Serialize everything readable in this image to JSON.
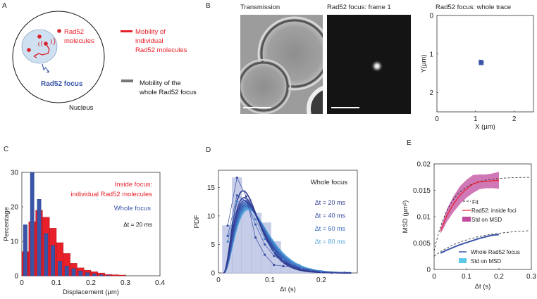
{
  "panels": {
    "A": {
      "letter": "A",
      "molecules_label_1": "Rad52",
      "molecules_label_2": "molecules",
      "focus_label": "Rad52 focus",
      "nucleus_label": "Nucleus",
      "legend": [
        {
          "lines": [
            "Mobility of",
            "individual",
            "Rad52 molecules"
          ],
          "color": "#e8202a"
        },
        {
          "lines": [
            "Mobility of the",
            "whole Rad52 focus"
          ],
          "color": "#777777"
        }
      ]
    },
    "B": {
      "letter": "B",
      "image1_title": "Transmission",
      "image2_title": "Rad52 focus: frame 1",
      "trace_title": "Rad52 focus: whole trace"
    },
    "C": {
      "letter": "C"
    },
    "D": {
      "letter": "D"
    },
    "E": {
      "letter": "E"
    }
  },
  "colors": {
    "red": "#e8202a",
    "blue": "#3a55a8",
    "pink": "#c04a9e",
    "lightblue": "#5ac8e8"
  },
  "chart_data": [
    {
      "id": "B-trace",
      "type": "scatter",
      "title": "Rad52 focus: whole trace",
      "xlabel": "X (µm)",
      "ylabel": "Y(µm)",
      "xlim": [
        0,
        2.5
      ],
      "ylim": [
        0,
        2.5
      ],
      "y_reversed": true,
      "xticks": [
        "0",
        "1",
        "2"
      ],
      "yticks": [
        "0",
        "1",
        "2"
      ],
      "cluster_center": [
        1.15,
        1.22
      ],
      "cluster_spread": 0.07
    },
    {
      "id": "C-hist",
      "type": "bar",
      "xlabel": "Displacement (µm)",
      "ylabel": "Percentage",
      "xlim": [
        0,
        0.4
      ],
      "ylim": [
        0,
        30
      ],
      "xticks": [
        "0",
        "0.1",
        "0.2",
        "0.3",
        "0.4"
      ],
      "yticks": [
        "0",
        "10",
        "20",
        "30"
      ],
      "bin_width": 0.02,
      "series": [
        {
          "name": "Inside focus: individual Rad52 molecules",
          "legend_lines": [
            "Inside focus:",
            "individual Rad52 molecules"
          ],
          "color": "#e8202a",
          "values": [
            7,
            15.7,
            19,
            17,
            13.8,
            9.6,
            6.5,
            3.6,
            2.3,
            1.6,
            1.2,
            0.8,
            0.4,
            0.3,
            0.2
          ]
        },
        {
          "name": "Whole focus",
          "color": "#3a55a8",
          "values": [
            14.8,
            30,
            22.2,
            12.3,
            8.8,
            4.2,
            2.8,
            2.1,
            1.4,
            0.9,
            0.6,
            0.3,
            0.1
          ]
        }
      ],
      "annotation": "Δt = 20 ms"
    },
    {
      "id": "D-pdf",
      "type": "line",
      "title": "Whole focus",
      "xlabel": "Δt (s)",
      "ylabel": "PDF",
      "xlim": [
        0,
        0.27
      ],
      "ylim": [
        0,
        18
      ],
      "xticks": [
        "0",
        "0.1",
        "0.2"
      ],
      "yticks": [
        "0",
        "5",
        "10",
        "15"
      ],
      "histogram": {
        "bin_edges": [
          0.008,
          0.027,
          0.045,
          0.064,
          0.083,
          0.102,
          0.121,
          0.14,
          0.159,
          0.178,
          0.197,
          0.216,
          0.235,
          0.254
        ],
        "values": [
          8.3,
          16.7,
          13,
          10.5,
          8.8,
          5.5,
          2.5,
          1.6,
          0.8,
          0.4,
          0.2,
          0.1,
          0.05
        ]
      },
      "legend": [
        {
          "label": "Δt = 20 ms",
          "color": "#2e3a8c"
        },
        {
          "label": "Δt = 40 ms",
          "color": "#3548a0"
        },
        {
          "label": "Δt = 60 ms",
          "color": "#3c6cbc"
        },
        {
          "label": "Δt = 80 ms",
          "color": "#5aa6dc"
        }
      ],
      "fit_curves": [
        {
          "peak_x": 0.048,
          "peak_y": 14.4,
          "color": "#2e3a8c"
        },
        {
          "peak_x": 0.05,
          "peak_y": 13.2,
          "color": "#32409a"
        },
        {
          "peak_x": 0.051,
          "peak_y": 12.7,
          "color": "#3548a0"
        },
        {
          "peak_x": 0.052,
          "peak_y": 12.4,
          "color": "#3a55aa"
        },
        {
          "peak_x": 0.053,
          "peak_y": 12.1,
          "color": "#3c62b4"
        },
        {
          "peak_x": 0.054,
          "peak_y": 11.9,
          "color": "#3d6cbc"
        },
        {
          "peak_x": 0.055,
          "peak_y": 11.7,
          "color": "#4078c4"
        },
        {
          "peak_x": 0.056,
          "peak_y": 11.5,
          "color": "#4688cc"
        },
        {
          "peak_x": 0.057,
          "peak_y": 11.3,
          "color": "#4e98d6"
        },
        {
          "peak_x": 0.058,
          "peak_y": 11.1,
          "color": "#5aa6dc"
        }
      ],
      "marker_series": [
        {
          "color": "#3a4aa0",
          "x": [
            0.018,
            0.036,
            0.054,
            0.072,
            0.09,
            0.108,
            0.126,
            0.144,
            0.162,
            0.18,
            0.2,
            0.22,
            0.245
          ],
          "y": [
            8.3,
            16.7,
            13.4,
            6.2,
            3.2,
            1.4,
            1.2,
            1.1,
            0.7,
            0.4,
            0.2,
            0.05,
            0.05
          ]
        },
        {
          "color": "#3a55aa",
          "x": [
            0.018,
            0.036,
            0.054,
            0.072,
            0.09,
            0.108,
            0.126,
            0.144,
            0.162,
            0.18,
            0.2
          ],
          "y": [
            6.5,
            13.6,
            12.5,
            8.5,
            5,
            3,
            2.1,
            1.4,
            0.8,
            0.5,
            0.2
          ]
        },
        {
          "color": "#4a80c8",
          "x": [
            0.018,
            0.036,
            0.054,
            0.072,
            0.09,
            0.108,
            0.126,
            0.144,
            0.162,
            0.18,
            0.2
          ],
          "y": [
            5.5,
            12.6,
            12,
            9.4,
            6,
            3.8,
            2.4,
            1.6,
            0.9,
            0.6,
            0.3
          ]
        }
      ]
    },
    {
      "id": "E-msd",
      "type": "line",
      "xlabel": "Δt (s)",
      "ylabel": "MSD (µm²)",
      "xlim": [
        0,
        0.3
      ],
      "ylim": [
        0,
        0.02
      ],
      "xticks": [
        "0",
        "0.1",
        "0.2",
        "0.3"
      ],
      "yticks": [
        "0",
        "0.005",
        "0.01",
        "0.015",
        "0.02"
      ],
      "series": [
        {
          "name": "Rad52: inside foci",
          "color": "#e8202a",
          "x": [
            0.02,
            0.04,
            0.06,
            0.08,
            0.1,
            0.12,
            0.14,
            0.16,
            0.18,
            0.2
          ],
          "y": [
            0.0073,
            0.0103,
            0.0124,
            0.0141,
            0.0153,
            0.0162,
            0.0166,
            0.0167,
            0.0168,
            0.0169
          ],
          "std": [
            0.0005,
            0.0012,
            0.0015,
            0.0017,
            0.0017,
            0.0017,
            0.0014,
            0.0013,
            0.0014,
            0.0016
          ],
          "std_label": "Std on MSD",
          "std_color": "#c04a9e"
        },
        {
          "name": "Whole Rad52 focus",
          "color": "#3a55a8",
          "x": [
            0.02,
            0.04,
            0.06,
            0.08,
            0.1,
            0.12,
            0.14,
            0.16,
            0.18,
            0.2
          ],
          "y": [
            0.0031,
            0.0037,
            0.0042,
            0.0047,
            0.0051,
            0.0055,
            0.0059,
            0.0062,
            0.0065,
            0.0066
          ],
          "std": [
            0.0001,
            0.0001,
            0.0001,
            0.0001,
            0.0001,
            0.0001,
            0.0001,
            0.0001,
            0.0001,
            0.0001
          ],
          "std_label": "Std on MSD",
          "std_color": "#5ac8e8"
        }
      ],
      "fits": [
        {
          "name": "Fit",
          "plateau": 0.0175,
          "offset": 0.0035,
          "tau": 0.05
        },
        {
          "name": "Fit",
          "plateau": 0.0077,
          "offset": 0.0025,
          "tau": 0.11
        }
      ],
      "fit_label": "Fit"
    }
  ]
}
